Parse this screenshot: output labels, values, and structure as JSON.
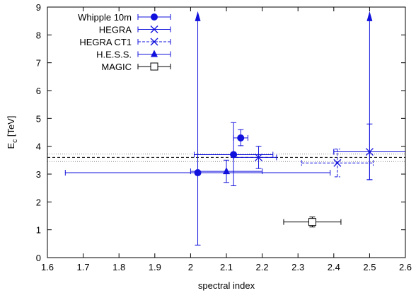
{
  "chart_data": {
    "type": "scatter",
    "xlabel": "spectral index",
    "ylabel_main": "E",
    "ylabel_sub": "c",
    "ylabel_unit": " [TeV]",
    "xlim": [
      1.6,
      2.6
    ],
    "ylim": [
      0,
      9
    ],
    "xticks": [
      "1.6",
      "1.7",
      "1.8",
      "1.9",
      "2",
      "2.1",
      "2.2",
      "2.3",
      "2.4",
      "2.5",
      "2.6"
    ],
    "yticks": [
      "0",
      "1",
      "2",
      "3",
      "4",
      "5",
      "6",
      "7",
      "8",
      "9"
    ],
    "legend_position": "top-left",
    "grid": false,
    "colors": {
      "blue": "#1111dd",
      "black": "#000000",
      "band": "#888888"
    },
    "horizontal_lines": [
      {
        "y": 3.72,
        "style": "dotted"
      },
      {
        "y": 3.6,
        "style": "dashed"
      },
      {
        "y": 3.45,
        "style": "dotted"
      }
    ],
    "series": [
      {
        "name": "Whipple 10m",
        "marker": "filled-circle",
        "color": "#1111dd",
        "points": [
          {
            "x": 2.02,
            "y": 3.05,
            "xerr": [
              0.01,
              0.2
            ],
            "yerr": [
              0.45,
              5.65
            ],
            "yupper": false
          },
          {
            "x": 2.12,
            "y": 3.7,
            "xerr": [
              2.01,
              2.23
            ],
            "yerr": [
              2.58,
              4.85
            ]
          },
          {
            "x": 2.14,
            "y": 4.3,
            "xerr": [
              2.12,
              2.16
            ],
            "yerr": [
              4.02,
              4.6
            ]
          }
        ]
      },
      {
        "name": "HEGRA",
        "marker": "x",
        "color": "#1111dd",
        "points": [
          {
            "x": 2.5,
            "y": 3.8,
            "xerr": [
              2.4,
              2.6
            ],
            "yerr": [
              2.8,
              4.8
            ]
          },
          {
            "x": 2.19,
            "y": 3.6,
            "xerr": [
              2.12,
              2.24
            ],
            "yerr": [
              3.2,
              4.0
            ]
          }
        ]
      },
      {
        "name": "HEGRA CT1",
        "marker": "x",
        "color": "#1111dd",
        "dashed": true,
        "points": [
          {
            "x": 2.41,
            "y": 3.4,
            "xerr": [
              2.31,
              2.51
            ],
            "yerr": [
              2.9,
              3.9
            ]
          }
        ]
      },
      {
        "name": "H.E.S.S.",
        "marker": "filled-triangle",
        "color": "#1111dd",
        "points": [
          {
            "x": 2.1,
            "y": 3.1,
            "xerr": [
              2.0,
              2.2
            ],
            "yerr": [
              2.7,
              3.5
            ]
          }
        ]
      },
      {
        "name": "MAGIC",
        "marker": "open-square",
        "color": "#000000",
        "points": [
          {
            "x": 2.34,
            "y": 1.28,
            "xerr": [
              2.26,
              2.42
            ],
            "yerr": [
              1.1,
              1.46
            ]
          }
        ]
      }
    ],
    "wide_points": [
      {
        "series": "Whipple 10m",
        "x": 2.02,
        "y": 3.05,
        "xerr": [
          1.65,
          2.39
        ],
        "yerr": [
          0.45,
          8.8
        ],
        "arrow_up": true
      },
      {
        "series": "HEGRA",
        "x": 2.5,
        "y": 3.8,
        "xerr": [
          2.4,
          2.6
        ],
        "yerr": [
          2.8,
          8.8
        ],
        "arrow_up": true
      }
    ]
  }
}
